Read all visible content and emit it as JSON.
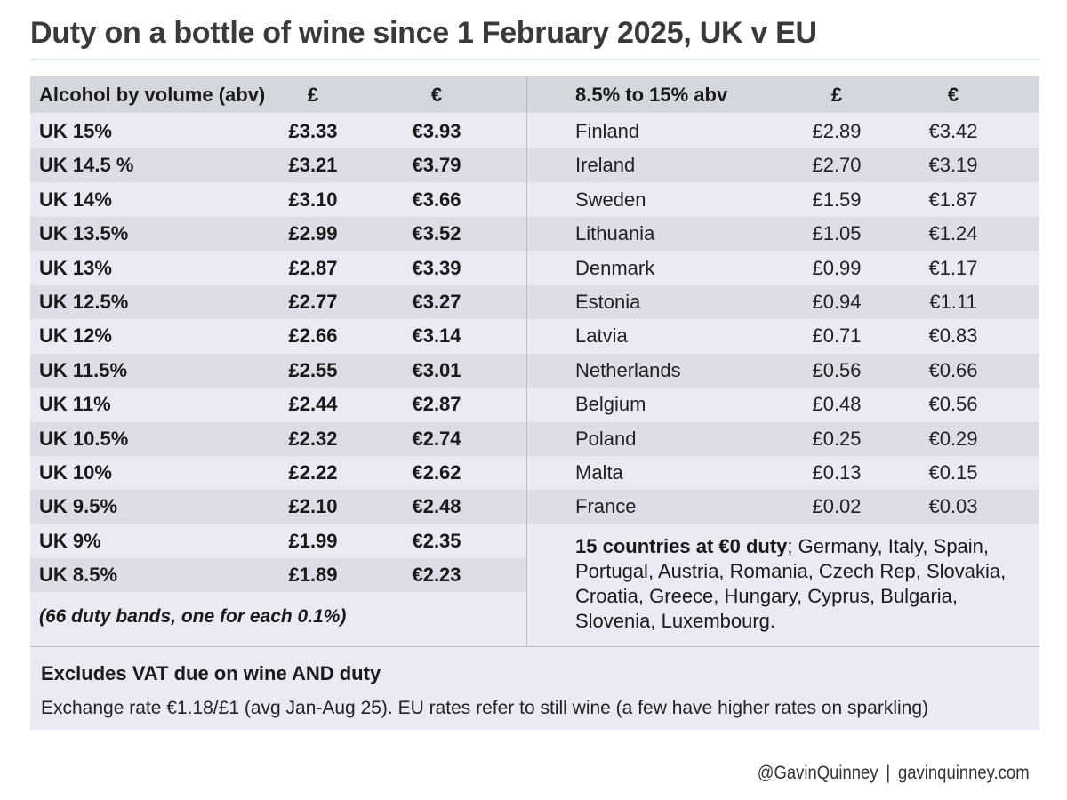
{
  "title": "Duty on a bottle of wine since 1 February 2025, UK v EU",
  "left_table": {
    "headers": [
      "Alcohol by volume (abv)",
      "£",
      "€"
    ],
    "rows": [
      [
        "UK 15%",
        "£3.33",
        "€3.93"
      ],
      [
        "UK 14.5 %",
        "£3.21",
        "€3.79"
      ],
      [
        "UK 14%",
        "£3.10",
        "€3.66"
      ],
      [
        "UK 13.5%",
        "£2.99",
        "€3.52"
      ],
      [
        "UK 13%",
        "£2.87",
        "€3.39"
      ],
      [
        "UK 12.5%",
        "£2.77",
        "€3.27"
      ],
      [
        "UK 12%",
        "£2.66",
        "€3.14"
      ],
      [
        "UK 11.5%",
        "£2.55",
        "€3.01"
      ],
      [
        "UK 11%",
        "£2.44",
        "€2.87"
      ],
      [
        "UK 10.5%",
        "£2.32",
        "€2.74"
      ],
      [
        "UK 10%",
        "£2.22",
        "€2.62"
      ],
      [
        "UK 9.5%",
        "£2.10",
        "€2.48"
      ],
      [
        "UK 9%",
        "£1.99",
        "€2.35"
      ],
      [
        "UK 8.5%",
        "£1.89",
        "€2.23"
      ]
    ],
    "note": "(66 duty bands, one for each 0.1%)"
  },
  "right_table": {
    "headers": [
      "8.5% to 15% abv",
      "£",
      "€"
    ],
    "rows": [
      [
        "Finland",
        "£2.89",
        "€3.42"
      ],
      [
        "Ireland",
        "£2.70",
        "€3.19"
      ],
      [
        "Sweden",
        "£1.59",
        "€1.87"
      ],
      [
        "Lithuania",
        "£1.05",
        "€1.24"
      ],
      [
        "Denmark",
        "£0.99",
        "€1.17"
      ],
      [
        "Estonia",
        "£0.94",
        "€1.11"
      ],
      [
        "Latvia",
        "£0.71",
        "€0.83"
      ],
      [
        "Netherlands",
        "£0.56",
        "€0.66"
      ],
      [
        "Belgium",
        "£0.48",
        "€0.56"
      ],
      [
        "Poland",
        "£0.25",
        "€0.29"
      ],
      [
        "Malta",
        "£0.13",
        "€0.15"
      ],
      [
        "France",
        "£0.02",
        "€0.03"
      ]
    ],
    "zero_duty_heading": "15 countries at €0 duty",
    "zero_duty_list": "; Germany, Italy, Spain, Portugal, Austria, Romania, Czech Rep, Slovakia, Croatia, Greece, Hungary, Cyprus, Bulgaria, Slovenia, Luxembourg."
  },
  "footnotes": {
    "excludes": "Excludes VAT due on wine AND duty",
    "exchange": "Exchange rate €1.18/£1 (avg Jan-Aug 25). EU rates refer to still wine (a few have higher rates on sparkling)"
  },
  "footer": {
    "handle": "@GavinQuinney",
    "separator": "|",
    "website": "gavinquinney.com"
  },
  "colors": {
    "panel_bg": "#eae9f4",
    "header_bg": "#d4d7dd",
    "shade_row": "#dcdde7",
    "title_text": "#3a3a3a"
  }
}
